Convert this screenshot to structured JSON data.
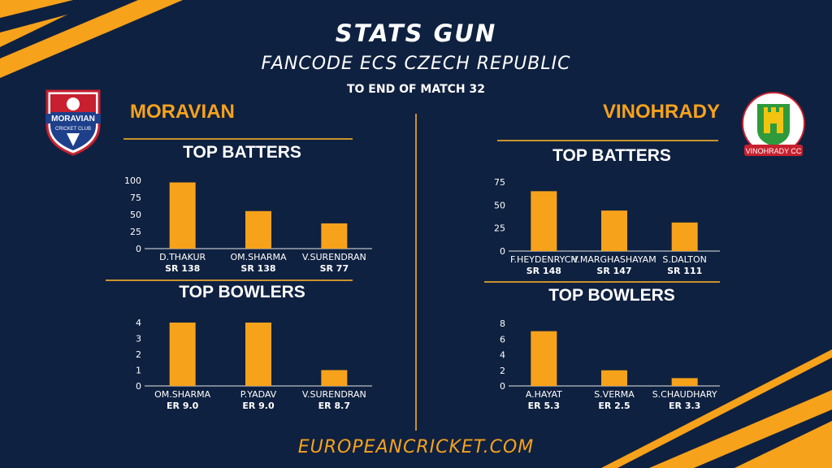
{
  "header": {
    "title": "STATS GUN",
    "subtitle": "FANCODE ECS CZECH REPUBLIC",
    "note": "TO END OF MATCH 32"
  },
  "teams": {
    "left": {
      "name": "MORAVIAN",
      "logo_text": "MORAVIAN",
      "logo_subtext": "CRICKET CLUB"
    },
    "right": {
      "name": "VINOHRADY",
      "logo_text": "VINOHRADY CC"
    }
  },
  "sections": {
    "batters": "TOP BATTERS",
    "bowlers": "TOP BOWLERS"
  },
  "footer": {
    "site": "EUROPEANCRICKET.COM"
  },
  "colors": {
    "accent": "#f7a21b",
    "background": "#0f2140",
    "rule": "#c9922e"
  },
  "chart_data": [
    {
      "id": "moravian-batters",
      "type": "bar",
      "title": "TOP BATTERS",
      "categories": [
        "D.THAKUR",
        "OM.SHARMA",
        "V.SURENDRAN"
      ],
      "sublabels": [
        "SR 138",
        "SR 138",
        "SR 77"
      ],
      "values": [
        97,
        55,
        37
      ],
      "ylim": [
        0,
        100
      ],
      "ticks": [
        0,
        25,
        50,
        75,
        100
      ]
    },
    {
      "id": "moravian-bowlers",
      "type": "bar",
      "title": "TOP BOWLERS",
      "categories": [
        "OM.SHARMA",
        "P.YADAV",
        "V.SURENDRAN"
      ],
      "sublabels": [
        "ER 9.0",
        "ER 9.0",
        "ER 8.7"
      ],
      "values": [
        4,
        4,
        1
      ],
      "ylim": [
        0,
        4
      ],
      "ticks": [
        0,
        1,
        2,
        3,
        4
      ]
    },
    {
      "id": "vinohrady-batters",
      "type": "bar",
      "title": "TOP BATTERS",
      "categories": [
        "F.HEYDENRYCH",
        "V.MARGHASHAYAM",
        "S.DALTON"
      ],
      "sublabels": [
        "SR 148",
        "SR 147",
        "SR 111"
      ],
      "values": [
        65,
        44,
        31
      ],
      "ylim": [
        0,
        75
      ],
      "ticks": [
        0,
        25,
        50,
        75
      ]
    },
    {
      "id": "vinohrady-bowlers",
      "type": "bar",
      "title": "TOP BOWLERS",
      "categories": [
        "A.HAYAT",
        "S.VERMA",
        "S.CHAUDHARY"
      ],
      "sublabels": [
        "ER 5.3",
        "ER 2.5",
        "ER 3.3"
      ],
      "values": [
        7,
        2,
        1
      ],
      "ylim": [
        0,
        8
      ],
      "ticks": [
        0,
        2,
        4,
        6,
        8
      ]
    }
  ]
}
